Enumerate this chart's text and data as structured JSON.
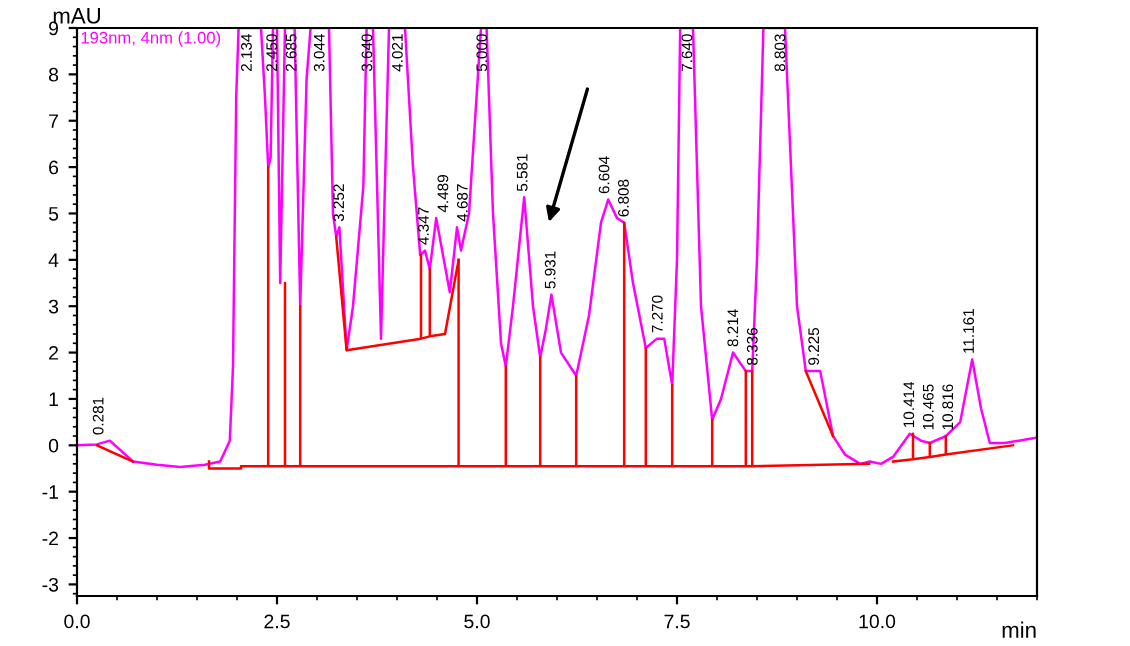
{
  "chart_data": {
    "type": "line",
    "xlabel": "min",
    "ylabel": "mAU",
    "xlim": [
      0,
      12
    ],
    "ylim": [
      -3.25,
      9
    ],
    "xticks": [
      {
        "value": 0,
        "label": "0.0"
      },
      {
        "value": 2.5,
        "label": "2.5"
      },
      {
        "value": 5,
        "label": "5.0"
      },
      {
        "value": 7.5,
        "label": "7.5"
      },
      {
        "value": 10,
        "label": "10.0"
      }
    ],
    "yticks": [
      -3,
      -2,
      -1,
      0,
      1,
      2,
      3,
      4,
      5,
      6,
      7,
      8,
      9
    ],
    "grid": false,
    "legend": "top left",
    "marker": "none",
    "line_style": "solid",
    "series": [
      {
        "name": "193nm, 4nm (1.00)",
        "color": "#ff00ff",
        "x": [
          0,
          0.25,
          0.41,
          0.7,
          1.0,
          1.29,
          1.6,
          1.79,
          1.91,
          1.95,
          1.99,
          2.02,
          2.3,
          2.35,
          2.39,
          2.42,
          2.45,
          2.5,
          2.54,
          2.6,
          2.72,
          2.79,
          2.87,
          2.92,
          3.15,
          3.2,
          3.24,
          3.28,
          3.37,
          3.45,
          3.58,
          3.62,
          3.7,
          3.8,
          3.9,
          4.1,
          4.2,
          4.29,
          4.35,
          4.41,
          4.49,
          4.66,
          4.75,
          4.8,
          4.9,
          5.05,
          5.12,
          5.2,
          5.3,
          5.36,
          5.45,
          5.59,
          5.7,
          5.79,
          5.86,
          5.93,
          6.05,
          6.24,
          6.4,
          6.55,
          6.64,
          6.75,
          6.84,
          6.95,
          7.11,
          7.25,
          7.34,
          7.44,
          7.5,
          7.54,
          7.7,
          7.8,
          7.94,
          8.05,
          8.2,
          8.36,
          8.44,
          8.5,
          8.58,
          8.85,
          8.9,
          9.0,
          9.11,
          9.29,
          9.45,
          9.6,
          9.79,
          9.91,
          10.05,
          10.2,
          10.41,
          10.55,
          10.66,
          10.86,
          11.04,
          11.19,
          11.3,
          11.41,
          11.6,
          11.95,
          12
        ],
        "values": [
          0,
          0.02,
          0.1,
          -0.35,
          -0.42,
          -0.47,
          -0.42,
          -0.35,
          0.1,
          1.7,
          7.5,
          9,
          9,
          7.5,
          6.0,
          6.2,
          9,
          9,
          3.5,
          9,
          9,
          3.0,
          7.9,
          9,
          9,
          5.0,
          4.5,
          4.7,
          2.05,
          3.0,
          5.6,
          9,
          9,
          2.3,
          9,
          9,
          6.0,
          4.1,
          4.2,
          3.8,
          4.9,
          3.3,
          4.7,
          4.2,
          5.0,
          9,
          9,
          5.0,
          2.2,
          1.7,
          3.0,
          5.35,
          3.0,
          1.9,
          2.5,
          3.25,
          2.0,
          1.5,
          2.8,
          4.8,
          5.3,
          4.9,
          4.8,
          3.5,
          2.1,
          2.3,
          2.3,
          1.3,
          4.0,
          9,
          9,
          3.0,
          0.55,
          1.0,
          2.0,
          1.6,
          1.6,
          4.0,
          9,
          9,
          7.0,
          3.0,
          1.6,
          1.6,
          0.2,
          -0.2,
          -0.4,
          -0.35,
          -0.4,
          -0.25,
          0.25,
          0.1,
          0.05,
          0.2,
          0.5,
          1.85,
          0.8,
          0.05,
          0.05,
          0.15,
          0.17
        ]
      },
      {
        "color": "#ff0000",
        "x": [
          0.25,
          0.7
        ],
        "values": [
          0,
          -0.35
        ]
      },
      {
        "color": "#ff0000",
        "x": [
          1.65,
          1.65,
          2.05,
          2.05,
          2.39,
          2.39,
          2.39,
          2.6,
          2.6,
          2.6,
          2.79,
          2.79,
          2.79,
          4.77,
          4.77,
          4.77,
          5.36,
          5.36,
          5.36,
          5.79,
          5.79,
          5.79,
          6.24,
          6.24,
          6.24,
          6.84,
          6.84,
          6.84,
          7.11,
          7.11,
          7.11,
          7.44,
          7.44,
          7.44,
          7.94,
          7.94,
          7.94,
          8.36,
          8.36,
          8.36,
          8.44,
          8.44,
          8.44,
          9.9
        ],
        "values": [
          -0.35,
          -0.5,
          -0.5,
          -0.45,
          -0.45,
          6.0,
          -0.45,
          -0.45,
          3.5,
          -0.45,
          -0.45,
          3.0,
          -0.45,
          -0.45,
          4.0,
          -0.45,
          -0.45,
          1.7,
          -0.45,
          -0.45,
          1.9,
          -0.45,
          -0.45,
          1.5,
          -0.45,
          -0.45,
          4.8,
          -0.45,
          -0.45,
          2.1,
          -0.45,
          -0.45,
          1.3,
          -0.45,
          -0.45,
          0.55,
          -0.45,
          -0.45,
          1.6,
          -0.45,
          -0.45,
          1.6,
          -0.45,
          -0.4
        ]
      },
      {
        "color": "#ff0000",
        "x": [
          10.2,
          10.45,
          10.45,
          10.45,
          10.66,
          10.66,
          10.66,
          10.86,
          10.86,
          10.86,
          11.7
        ],
        "values": [
          -0.35,
          -0.3,
          0.25,
          -0.3,
          -0.25,
          0.05,
          -0.25,
          -0.2,
          0.2,
          -0.2,
          0.0
        ]
      },
      {
        "color": "#ff0000",
        "x": [
          3.24,
          3.37,
          4.3,
          4.3,
          4.3,
          4.41,
          4.41,
          4.41,
          4.6,
          4.77
        ],
        "values": [
          4.5,
          2.05,
          2.3,
          4.1,
          2.3,
          2.35,
          3.8,
          2.35,
          2.4,
          4.0
        ]
      },
      {
        "color": "#ff0000",
        "x": [
          9.11,
          9.45
        ],
        "values": [
          1.6,
          0.2
        ]
      }
    ],
    "annotations": [
      {
        "text": "0.281",
        "x": 0.281,
        "y": 0.1
      },
      {
        "text": "2.134",
        "x": 2.134,
        "y": 9
      },
      {
        "text": "2.450",
        "x": 2.45,
        "y": 9
      },
      {
        "text": "2.685",
        "x": 2.685,
        "y": 9
      },
      {
        "text": "3.044",
        "x": 3.044,
        "y": 9
      },
      {
        "text": "3.252",
        "x": 3.252,
        "y": 4.7
      },
      {
        "text": "3.640",
        "x": 3.64,
        "y": 9
      },
      {
        "text": "4.021",
        "x": 4.021,
        "y": 9
      },
      {
        "text": "4.347",
        "x": 4.347,
        "y": 4.2
      },
      {
        "text": "4.489",
        "x": 4.489,
        "y": 4.9
      },
      {
        "text": "4.687",
        "x": 4.687,
        "y": 4.7
      },
      {
        "text": "5.000",
        "x": 5.0,
        "y": 9
      },
      {
        "text": "5.581",
        "x": 5.581,
        "y": 5.35
      },
      {
        "text": "5.931",
        "x": 5.931,
        "y": 3.25
      },
      {
        "text": "6.604",
        "x": 6.604,
        "y": 5.3
      },
      {
        "text": "6.808",
        "x": 6.808,
        "y": 4.8
      },
      {
        "text": "7.270",
        "x": 7.27,
        "y": 2.3
      },
      {
        "text": "7.640",
        "x": 7.64,
        "y": 9
      },
      {
        "text": "8.214",
        "x": 8.214,
        "y": 2.0
      },
      {
        "text": "8.336",
        "x": 8.336,
        "y": 1.6
      },
      {
        "text": "8.803",
        "x": 8.803,
        "y": 9
      },
      {
        "text": "9.225",
        "x": 9.225,
        "y": 1.6
      },
      {
        "text": "10.414",
        "x": 10.414,
        "y": 0.25
      },
      {
        "text": "10.465",
        "x": 10.465,
        "y": 0.2
      },
      {
        "text": "10.816",
        "x": 10.816,
        "y": 0.2
      },
      {
        "text": "11.161",
        "x": 11.161,
        "y": 1.85
      }
    ]
  }
}
